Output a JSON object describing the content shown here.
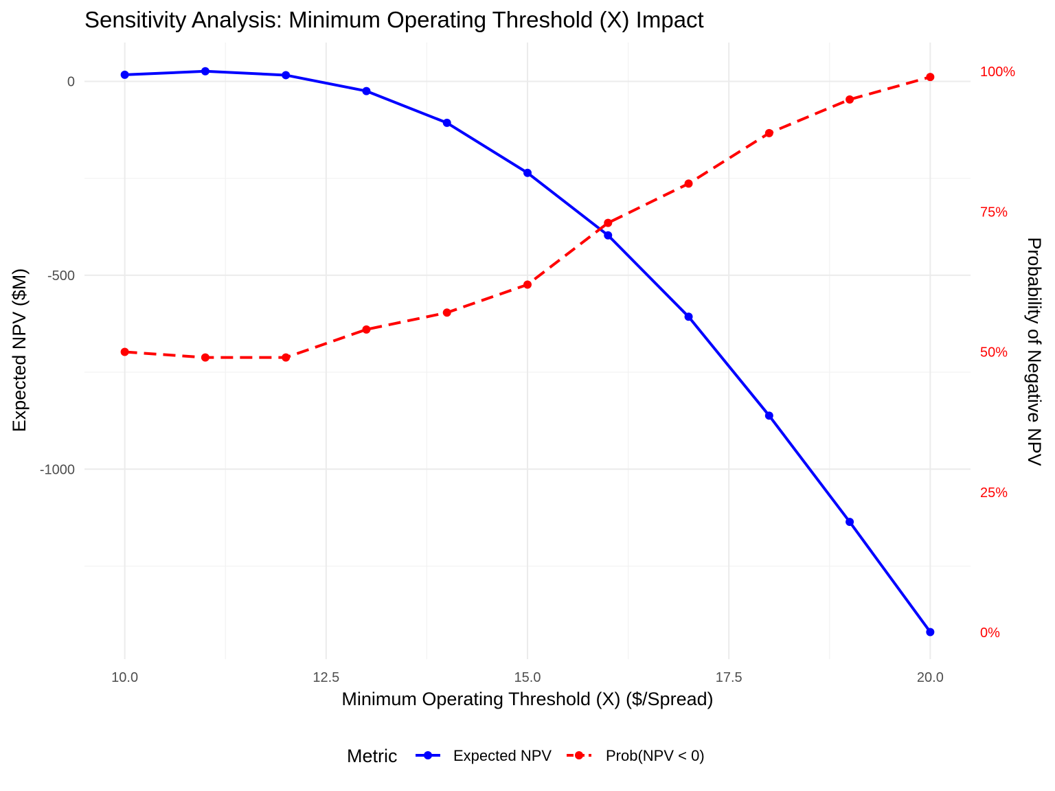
{
  "chart_data": {
    "type": "line",
    "title": "Sensitivity Analysis: Minimum Operating Threshold (X) Impact",
    "xlabel": "Minimum Operating Threshold (X) ($/Spread)",
    "ylabel": "Expected NPV ($M)",
    "y2label": "Probability of Negative NPV",
    "x": [
      10,
      11,
      12,
      13,
      14,
      15,
      16,
      17,
      18,
      19,
      20
    ],
    "xlim": [
      9.5,
      20.5
    ],
    "xticks": [
      10.0,
      12.5,
      15.0,
      17.5,
      20.0
    ],
    "xtick_labels": [
      "10.0",
      "12.5",
      "15.0",
      "17.5",
      "20.0"
    ],
    "ylim": [
      -1490,
      100
    ],
    "yticks": [
      0,
      -500,
      -1000
    ],
    "ytick_labels": [
      "0",
      "-500",
      "-1000"
    ],
    "y2lim": [
      0,
      1
    ],
    "y2ticks": [
      1.0,
      0.75,
      0.5,
      0.25,
      0.0
    ],
    "y2tick_labels": [
      "100%",
      "75%",
      "50%",
      "25%",
      "0%"
    ],
    "grid": true,
    "legend_position": "bottom",
    "legend_title": "Metric",
    "series": [
      {
        "name": "Expected NPV",
        "axis": "left",
        "color": "#0000ff",
        "style": "solid",
        "values": [
          17,
          26,
          16,
          -25,
          -107,
          -236,
          -397,
          -607,
          -862,
          -1136,
          -1420
        ]
      },
      {
        "name": "Prob(NPV < 0)",
        "axis": "right",
        "color": "#ff0000",
        "style": "dashed",
        "values": [
          0.5,
          0.49,
          0.49,
          0.54,
          0.57,
          0.62,
          0.73,
          0.8,
          0.89,
          0.95,
          0.99
        ]
      }
    ]
  }
}
